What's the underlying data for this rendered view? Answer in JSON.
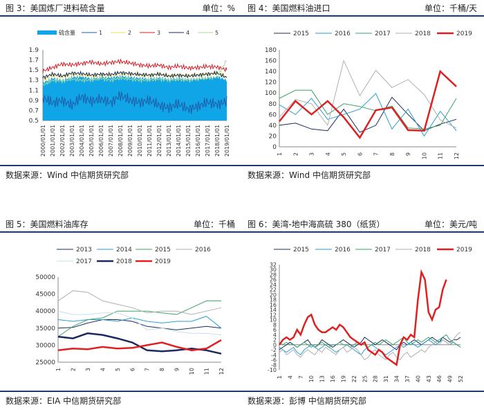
{
  "charts": [
    {
      "title": "图 3：美国炼厂进料硫含量",
      "unit": "单位：%",
      "source": "数据来源：Wind   中信期货研究部"
    },
    {
      "title": "图 4：美国燃料油进口",
      "unit": "单位：千桶/天",
      "source": "数据来源：Wind   中信期货研究部"
    },
    {
      "title": "图 5：美国燃料油库存",
      "unit": "单位：千桶",
      "source": "数据来源：EIA   中信期货研究部"
    },
    {
      "title": "图 6：美湾-地中海高硫 380（纸货）",
      "unit": "单位：美元/吨",
      "source": "数据来源：彭博   中信期货研究部"
    }
  ],
  "chart_data": [
    {
      "type": "area",
      "title": "美国炼厂进料硫含量",
      "ylim": [
        0.5,
        1.9
      ],
      "yticks": [
        0.5,
        0.7,
        0.9,
        1.1,
        1.3,
        1.5,
        1.7,
        1.9
      ],
      "xlim": [
        2000,
        2019
      ],
      "categories": [
        "2000/01/01",
        "2001/01/01",
        "2002/01/01",
        "2003/01/01",
        "2004/01/01",
        "2005/01/01",
        "2006/01/01",
        "2007/01/01",
        "2008/01/01",
        "2009/01/01",
        "2010/01/01",
        "2011/01/01",
        "2012/01/01",
        "2013/01/01",
        "2014/01/01",
        "2015/01/01",
        "2016/01/01",
        "2017/01/01",
        "2018/01/01",
        "2019/01/01"
      ],
      "series": [
        {
          "name": "硫含量",
          "color": "#10a5e6",
          "kind": "area",
          "values": [
            1.25,
            1.34,
            1.3,
            1.36,
            1.37,
            1.33,
            1.36,
            1.35,
            1.38,
            1.36,
            1.34,
            1.33,
            1.35,
            1.32,
            1.34,
            1.32,
            1.33,
            1.35,
            1.37,
            1.3
          ]
        },
        {
          "name": "1",
          "color": "#1f5aa8",
          "kind": "line",
          "values": [
            0.95,
            0.85,
            0.9,
            0.8,
            0.97,
            0.88,
            0.92,
            0.85,
            1.0,
            0.9,
            0.86,
            0.9,
            0.8,
            0.75,
            0.83,
            0.72,
            0.78,
            0.86,
            0.82,
            0.88
          ]
        },
        {
          "name": "2",
          "color": "#e8e35a",
          "kind": "line",
          "values": [
            1.3,
            1.4,
            1.36,
            1.42,
            1.4,
            1.38,
            1.41,
            1.39,
            1.43,
            1.42,
            1.4,
            1.39,
            1.42,
            1.38,
            1.4,
            1.39,
            1.4,
            1.42,
            1.44,
            1.36
          ]
        },
        {
          "name": "3",
          "color": "#d41f26",
          "kind": "line",
          "values": [
            1.48,
            1.55,
            1.62,
            1.6,
            1.63,
            1.66,
            1.62,
            1.65,
            1.67,
            1.64,
            1.6,
            1.58,
            1.6,
            1.55,
            1.58,
            1.54,
            1.55,
            1.57,
            1.56,
            1.5
          ]
        },
        {
          "name": "4",
          "color": "#1a2a5e",
          "kind": "line",
          "values": [
            1.35,
            1.42,
            1.38,
            1.44,
            1.43,
            1.4,
            1.42,
            1.41,
            1.45,
            1.43,
            1.41,
            1.4,
            1.42,
            1.38,
            1.4,
            1.38,
            1.4,
            1.42,
            1.44,
            1.35
          ]
        },
        {
          "name": "5",
          "color": "#a6d99a",
          "kind": "line",
          "values": [
            1.2,
            1.3,
            1.28,
            1.32,
            1.3,
            1.3,
            1.33,
            1.3,
            1.34,
            1.32,
            1.3,
            1.3,
            1.32,
            1.3,
            1.31,
            1.3,
            1.32,
            1.34,
            1.36,
            1.7
          ]
        }
      ]
    },
    {
      "type": "line",
      "title": "美国燃料油进口",
      "x": [
        1,
        2,
        3,
        4,
        5,
        6,
        7,
        8,
        9,
        10,
        11,
        12
      ],
      "ylim": [
        0,
        180
      ],
      "yticks": [
        0,
        20,
        40,
        60,
        80,
        100,
        120,
        140,
        160,
        180
      ],
      "series": [
        {
          "name": "2015",
          "color": "#1a2a5e",
          "width": 1,
          "values": [
            40,
            44,
            33,
            30,
            70,
            27,
            40,
            92,
            60,
            30,
            42,
            51
          ]
        },
        {
          "name": "2016",
          "color": "#2a9fd6",
          "width": 1,
          "values": [
            78,
            60,
            90,
            51,
            60,
            70,
            99,
            33,
            70,
            20,
            66,
            30
          ]
        },
        {
          "name": "2017",
          "color": "#3aa66a",
          "width": 1,
          "values": [
            90,
            105,
            105,
            60,
            80,
            75,
            67,
            76,
            35,
            33,
            40,
            90
          ]
        },
        {
          "name": "2018",
          "color": "#b0b0b0",
          "width": 1,
          "values": [
            55,
            88,
            80,
            40,
            160,
            95,
            142,
            110,
            125,
            97,
            50,
            35
          ]
        },
        {
          "name": "2019",
          "color": "#e02020",
          "width": 2.5,
          "values": [
            47,
            85,
            60,
            85,
            55,
            17,
            68,
            73,
            31,
            30,
            140,
            112
          ]
        }
      ]
    },
    {
      "type": "line",
      "title": "美国燃料油库存",
      "x": [
        1,
        2,
        3,
        4,
        5,
        6,
        7,
        8,
        9,
        10,
        11,
        12
      ],
      "ylim": [
        25000,
        50000
      ],
      "yticks": [
        25000,
        30000,
        35000,
        40000,
        45000,
        50000
      ],
      "series": [
        {
          "name": "2013",
          "color": "#1a2a5e",
          "width": 1,
          "values": [
            35000,
            35200,
            36500,
            37500,
            37500,
            37000,
            35500,
            35000,
            34500,
            35000,
            35500,
            35000
          ]
        },
        {
          "name": "2014",
          "color": "#2a9fd6",
          "width": 1,
          "values": [
            37500,
            37000,
            37500,
            37500,
            37000,
            38000,
            37000,
            36500,
            37000,
            37000,
            38500,
            35000
          ]
        },
        {
          "name": "2015",
          "color": "#3aa66a",
          "width": 1,
          "values": [
            32500,
            35500,
            37500,
            38000,
            40000,
            40000,
            40000,
            39500,
            39000,
            41000,
            43000,
            43000
          ]
        },
        {
          "name": "2016",
          "color": "#b0b0b0",
          "width": 1,
          "values": [
            43000,
            46000,
            45500,
            43000,
            42000,
            41000,
            39500,
            40000,
            40000,
            39000,
            40000,
            41000
          ]
        },
        {
          "name": "2017",
          "color": "#c6e0ea",
          "width": 1,
          "values": [
            40000,
            39000,
            39000,
            39500,
            39500,
            38000,
            34500,
            35000,
            34000,
            33500,
            33500,
            33000
          ]
        },
        {
          "name": "2018",
          "color": "#1a2a5e",
          "width": 2.5,
          "values": [
            32500,
            32000,
            33500,
            33000,
            32000,
            30800,
            28500,
            28200,
            28500,
            29000,
            28500,
            27500
          ]
        },
        {
          "name": "2019",
          "color": "#e02020",
          "width": 2.5,
          "values": [
            28500,
            29000,
            28800,
            29500,
            29000,
            29200,
            30000,
            30800,
            29500,
            28500,
            29000,
            31500
          ]
        }
      ]
    },
    {
      "type": "line",
      "title": "美湾-地中海高硫 380（纸货）",
      "x_ticks": [
        1,
        4,
        7,
        10,
        13,
        16,
        19,
        22,
        25,
        28,
        31,
        34,
        37,
        40,
        43,
        46,
        49,
        52
      ],
      "ylim": [
        -10,
        32
      ],
      "yticks": [
        -10,
        -8,
        -6,
        -4,
        -2,
        0,
        2,
        4,
        6,
        8,
        10,
        12,
        14,
        16,
        18,
        20,
        22,
        24,
        26,
        28,
        30,
        32
      ],
      "series": [
        {
          "name": "2015",
          "color": "#1a2a5e",
          "width": 1,
          "values": [
            -2,
            -1,
            0,
            1,
            0,
            -1,
            0,
            1,
            2,
            0,
            -1,
            0,
            2,
            1,
            0,
            -1,
            0,
            1,
            2,
            1,
            0,
            -1,
            0,
            1,
            3,
            2,
            1,
            0,
            1,
            2,
            1,
            0,
            -1,
            -2,
            0,
            1,
            0,
            1,
            2,
            1,
            0,
            1,
            2,
            3,
            2,
            1,
            3,
            2,
            1,
            2,
            2,
            3
          ]
        },
        {
          "name": "2016",
          "color": "#2a9fd6",
          "width": 1,
          "values": [
            -1,
            -2,
            -3,
            -2,
            -1,
            -3,
            -4,
            -2,
            -1,
            0,
            -1,
            -2,
            -1,
            0,
            -1,
            -2,
            -3,
            -2,
            -1,
            0,
            -1,
            -2,
            -3,
            -4,
            -2,
            -1,
            0,
            -1,
            -2,
            -3,
            -4,
            -3,
            -2,
            -1,
            0,
            -1,
            0,
            1,
            0,
            -1,
            0,
            1,
            2,
            1,
            0,
            1,
            2,
            1,
            0,
            1,
            0,
            -1
          ]
        },
        {
          "name": "2017",
          "color": "#3aa66a",
          "width": 1,
          "values": [
            1,
            0,
            1,
            0,
            0,
            -1,
            0,
            1,
            0,
            -1,
            0,
            0,
            1,
            0,
            -1,
            0,
            0,
            1,
            0,
            0,
            -1,
            0,
            1,
            0,
            0,
            -1,
            0,
            1,
            0,
            1,
            2,
            1,
            0,
            1,
            2,
            3,
            1,
            0,
            1,
            2,
            1,
            2,
            3,
            2,
            1,
            2,
            3,
            4,
            2,
            1,
            0,
            -1
          ]
        },
        {
          "name": "2018",
          "color": "#b0b0b0",
          "width": 1,
          "values": [
            -3,
            -2,
            -4,
            -3,
            -2,
            -4,
            -5,
            -3,
            -2,
            -3,
            -4,
            -2,
            -3,
            -1,
            -2,
            -3,
            -4,
            -2,
            -1,
            -3,
            -2,
            -1,
            -2,
            -4,
            -6,
            -5,
            -3,
            -2,
            -4,
            -5,
            -6,
            -4,
            -3,
            -5,
            -6,
            -4,
            -3,
            -5,
            -4,
            -3,
            -2,
            -3,
            -1,
            0,
            1,
            0,
            2,
            1,
            0,
            2,
            4,
            5
          ]
        },
        {
          "name": "2019",
          "color": "#e02020",
          "width": 2.5,
          "values": [
            0,
            2,
            3,
            2,
            3,
            6,
            4,
            8,
            11,
            12,
            8,
            6,
            5,
            5,
            6,
            7,
            6,
            8,
            7,
            5,
            3,
            2,
            1,
            0,
            1,
            -2,
            -3,
            -4,
            -2,
            -3,
            -5,
            -6,
            -7,
            -8,
            0,
            3,
            2,
            4,
            3,
            18,
            29,
            26,
            13,
            10,
            14,
            15,
            22,
            26
          ]
        }
      ]
    }
  ]
}
